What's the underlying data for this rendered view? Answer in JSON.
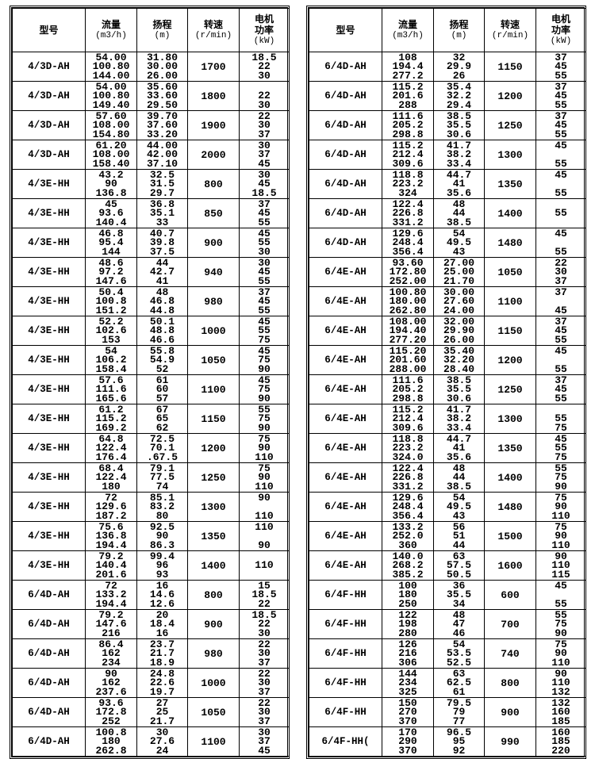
{
  "headers": {
    "model": "型号",
    "flow": "流量",
    "flow_unit": "(m3/h)",
    "head": "扬程",
    "head_unit": "(m)",
    "speed": "转速",
    "speed_unit": "(r/min)",
    "power": "电机\n功率",
    "power_unit": "(kW)"
  },
  "left_table": [
    {
      "model": "4/3D-AH",
      "flow": [
        "54.00",
        "100.80",
        "144.00"
      ],
      "head": [
        "31.80",
        "30.00",
        "26.00"
      ],
      "speed": "1700",
      "power": [
        "18.5",
        "22",
        "30"
      ]
    },
    {
      "model": "4/3D-AH",
      "flow": [
        "54.00",
        "100.80",
        "149.40"
      ],
      "head": [
        "35.60",
        "33.60",
        "29.50"
      ],
      "speed": "1800",
      "power": [
        "",
        "22",
        "30"
      ]
    },
    {
      "model": "4/3D-AH",
      "flow": [
        "57.60",
        "108.00",
        "154.80"
      ],
      "head": [
        "39.70",
        "37.60",
        "33.20"
      ],
      "speed": "1900",
      "power": [
        "22",
        "30",
        "37"
      ]
    },
    {
      "model": "4/3D-AH",
      "flow": [
        "61.20",
        "108.00",
        "158.40"
      ],
      "head": [
        "44.00",
        "42.00",
        "37.10"
      ],
      "speed": "2000",
      "power": [
        "30",
        "37",
        "45"
      ]
    },
    {
      "model": "4/3E-HH",
      "flow": [
        "43.2",
        "90",
        "136.8"
      ],
      "head": [
        "32.5",
        "31.5",
        "29.7"
      ],
      "speed": "800",
      "power": [
        "30",
        "45",
        "18.5"
      ]
    },
    {
      "model": "4/3E-HH",
      "flow": [
        "45",
        "93.6",
        "140.4"
      ],
      "head": [
        "36.8",
        "35.1",
        "33"
      ],
      "speed": "850",
      "power": [
        "37",
        "45",
        "55"
      ]
    },
    {
      "model": "4/3E-HH",
      "flow": [
        "46.8",
        "95.4",
        "144"
      ],
      "head": [
        "40.7",
        "39.8",
        "37.5"
      ],
      "speed": "900",
      "power": [
        "45",
        "55",
        "30"
      ]
    },
    {
      "model": "4/3E-HH",
      "flow": [
        "48.6",
        "97.2",
        "147.6"
      ],
      "head": [
        "44",
        "42.7",
        "41"
      ],
      "speed": "940",
      "power": [
        "30",
        "45",
        "55"
      ]
    },
    {
      "model": "4/3E-HH",
      "flow": [
        "50.4",
        "100.8",
        "151.2"
      ],
      "head": [
        "48",
        "46.8",
        "44.8"
      ],
      "speed": "980",
      "power": [
        "37",
        "45",
        "55"
      ]
    },
    {
      "model": "4/3E-HH",
      "flow": [
        "52.2",
        "102.6",
        "153"
      ],
      "head": [
        "50.1",
        "48.8",
        "46.6"
      ],
      "speed": "1000",
      "power": [
        "45",
        "55",
        "75"
      ]
    },
    {
      "model": "4/3E-HH",
      "flow": [
        "54",
        "106.2",
        "158.4"
      ],
      "head": [
        "55.8",
        "54.9",
        "52"
      ],
      "speed": "1050",
      "power": [
        "45",
        "75",
        "90"
      ]
    },
    {
      "model": "4/3E-HH",
      "flow": [
        "57.6",
        "111.6",
        "165.6"
      ],
      "head": [
        "61",
        "60",
        "57"
      ],
      "speed": "1100",
      "power": [
        "45",
        "75",
        "90"
      ]
    },
    {
      "model": "4/3E-HH",
      "flow": [
        "61.2",
        "115.2",
        "169.2"
      ],
      "head": [
        "67",
        "65",
        "62"
      ],
      "speed": "1150",
      "power": [
        "55",
        "75",
        "90"
      ]
    },
    {
      "model": "4/3E-HH",
      "flow": [
        "64.8",
        "122.4",
        "176.4"
      ],
      "head": [
        "72.5",
        "70.1",
        ".67.5"
      ],
      "speed": "1200",
      "power": [
        "75",
        "90",
        "110"
      ]
    },
    {
      "model": "4/3E-HH",
      "flow": [
        "68.4",
        "122.4",
        "180"
      ],
      "head": [
        "79.1",
        "77.5",
        "74"
      ],
      "speed": "1250",
      "power": [
        "75",
        "90",
        "110"
      ]
    },
    {
      "model": "4/3E-HH",
      "flow": [
        "72",
        "129.6",
        "187.2"
      ],
      "head": [
        "85.1",
        "83.2",
        "80"
      ],
      "speed": "1300",
      "power": [
        "90",
        "",
        "110"
      ]
    },
    {
      "model": "4/3E-HH",
      "flow": [
        "75.6",
        "136.8",
        "194.4"
      ],
      "head": [
        "92.5",
        "90",
        "86.3"
      ],
      "speed": "1350",
      "power": [
        "110",
        "",
        "90"
      ]
    },
    {
      "model": "4/3E-HH",
      "flow": [
        "79.2",
        "140.4",
        "201.6"
      ],
      "head": [
        "99.4",
        "96",
        "93"
      ],
      "speed": "1400",
      "power": [
        "",
        "110",
        ""
      ]
    },
    {
      "model": "6/4D-AH",
      "flow": [
        "72",
        "133.2",
        "194.4"
      ],
      "head": [
        "16",
        "14.6",
        "12.6"
      ],
      "speed": "800",
      "power": [
        "15",
        "18.5",
        "22"
      ]
    },
    {
      "model": "6/4D-AH",
      "flow": [
        "79.2",
        "147.6",
        "216"
      ],
      "head": [
        "20",
        "18.4",
        "16"
      ],
      "speed": "900",
      "power": [
        "18.5",
        "22",
        "30"
      ]
    },
    {
      "model": "6/4D-AH",
      "flow": [
        "86.4",
        "162",
        "234"
      ],
      "head": [
        "23.7",
        "21.7",
        "18.9"
      ],
      "speed": "980",
      "power": [
        "22",
        "30",
        "37"
      ]
    },
    {
      "model": "6/4D-AH",
      "flow": [
        "90",
        "162",
        "237.6"
      ],
      "head": [
        "24.8",
        "22.6",
        "19.7"
      ],
      "speed": "1000",
      "power": [
        "22",
        "30",
        "37"
      ]
    },
    {
      "model": "6/4D-AH",
      "flow": [
        "93.6",
        "172.8",
        "252"
      ],
      "head": [
        "27",
        "25",
        "21.7"
      ],
      "speed": "1050",
      "power": [
        "22",
        "30",
        "37"
      ]
    },
    {
      "model": "6/4D-AH",
      "flow": [
        "100.8",
        "180",
        "262.8"
      ],
      "head": [
        "30",
        "27.6",
        "24"
      ],
      "speed": "1100",
      "power": [
        "30",
        "37",
        "45"
      ]
    }
  ],
  "right_table": [
    {
      "model": "6/4D-AH",
      "flow": [
        "108",
        "194.4",
        "277.2"
      ],
      "head": [
        "32",
        "29.9",
        "26"
      ],
      "speed": "1150",
      "power": [
        "37",
        "45",
        "55"
      ]
    },
    {
      "model": "6/4D-AH",
      "flow": [
        "115.2",
        "201.6",
        "288"
      ],
      "head": [
        "35.4",
        "32.2",
        "29.4"
      ],
      "speed": "1200",
      "power": [
        "37",
        "45",
        "55"
      ]
    },
    {
      "model": "6/4D-AH",
      "flow": [
        "111.6",
        "205.2",
        "298.8"
      ],
      "head": [
        "38.5",
        "35.5",
        "30.6"
      ],
      "speed": "1250",
      "power": [
        "37",
        "45",
        "55"
      ]
    },
    {
      "model": "6/4D-AH",
      "flow": [
        "115.2",
        "212.4",
        "309.6"
      ],
      "head": [
        "41.7",
        "38.2",
        "33.4"
      ],
      "speed": "1300",
      "power": [
        "45",
        "",
        "55"
      ]
    },
    {
      "model": "6/4D-AH",
      "flow": [
        "118.8",
        "223.2",
        "324"
      ],
      "head": [
        "44.7",
        "41",
        "35.6"
      ],
      "speed": "1350",
      "power": [
        "45",
        "",
        "55"
      ]
    },
    {
      "model": "6/4D-AH",
      "flow": [
        "122.4",
        "226.8",
        "331.2"
      ],
      "head": [
        "48",
        "44",
        "38.5"
      ],
      "speed": "1400",
      "power": [
        "",
        "55",
        ""
      ]
    },
    {
      "model": "6/4D-AH",
      "flow": [
        "129.6",
        "248.4",
        "356.4"
      ],
      "head": [
        "54",
        "49.5",
        "43"
      ],
      "speed": "1480",
      "power": [
        "45",
        "",
        "55"
      ]
    },
    {
      "model": "6/4E-AH",
      "flow": [
        "93.60",
        "172.80",
        "252.00"
      ],
      "head": [
        "27.00",
        "25.00",
        "21.70"
      ],
      "speed": "1050",
      "power": [
        "22",
        "30",
        "37"
      ]
    },
    {
      "model": "6/4E-AH",
      "flow": [
        "100.80",
        "180.00",
        "262.80"
      ],
      "head": [
        "30.00",
        "27.60",
        "24.00"
      ],
      "speed": "1100",
      "power": [
        "37",
        "",
        "45"
      ]
    },
    {
      "model": "6/4E-AH",
      "flow": [
        "108.00",
        "194.40",
        "277.20"
      ],
      "head": [
        "32.00",
        "29.90",
        "26.00"
      ],
      "speed": "1150",
      "power": [
        "37",
        "45",
        "55"
      ]
    },
    {
      "model": "6/4E-AH",
      "flow": [
        "115.20",
        "201.60",
        "288.00"
      ],
      "head": [
        "35.40",
        "32.20",
        "28.40"
      ],
      "speed": "1200",
      "power": [
        "45",
        "",
        "55"
      ]
    },
    {
      "model": "6/4E-AH",
      "flow": [
        "111.6",
        "205.2",
        "298.8"
      ],
      "head": [
        "38.5",
        "35.5",
        "30.6"
      ],
      "speed": "1250",
      "power": [
        "37",
        "45",
        "55"
      ]
    },
    {
      "model": "6/4E-AH",
      "flow": [
        "115.2",
        "212.4",
        "309.6"
      ],
      "head": [
        "41.7",
        "38.2",
        "33.4"
      ],
      "speed": "1300",
      "power": [
        "",
        "55",
        "75"
      ]
    },
    {
      "model": "6/4E-AH",
      "flow": [
        "118.8",
        "223.2",
        "324.0"
      ],
      "head": [
        "44.7",
        "41",
        "35.6"
      ],
      "speed": "1350",
      "power": [
        "45",
        "55",
        "75"
      ]
    },
    {
      "model": "6/4E-AH",
      "flow": [
        "122.4",
        "226.8",
        "331.2"
      ],
      "head": [
        "48",
        "44",
        "38.5"
      ],
      "speed": "1400",
      "power": [
        "55",
        "75",
        "90"
      ]
    },
    {
      "model": "6/4E-AH",
      "flow": [
        "129.6",
        "248.4",
        "356.4"
      ],
      "head": [
        "54",
        "49.5",
        "43"
      ],
      "speed": "1480",
      "power": [
        "75",
        "90",
        "110"
      ]
    },
    {
      "model": "6/4E-AH",
      "flow": [
        "133.2",
        "252.0",
        "360"
      ],
      "head": [
        "56",
        "51",
        "44"
      ],
      "speed": "1500",
      "power": [
        "75",
        "90",
        "110"
      ]
    },
    {
      "model": "6/4E-AH",
      "flow": [
        "140.0",
        "268.2",
        "385.2"
      ],
      "head": [
        "63",
        "57.5",
        "50.5"
      ],
      "speed": "1600",
      "power": [
        "90",
        "110",
        "115"
      ]
    },
    {
      "model": "6/4F-HH",
      "flow": [
        "100",
        "180",
        "250"
      ],
      "head": [
        "36",
        "35.5",
        "34"
      ],
      "speed": "600",
      "power": [
        "45",
        "",
        "55"
      ]
    },
    {
      "model": "6/4F-HH",
      "flow": [
        "122",
        "198",
        "280"
      ],
      "head": [
        "48",
        "47",
        "46"
      ],
      "speed": "700",
      "power": [
        "55",
        "75",
        "90"
      ]
    },
    {
      "model": "6/4F-HH",
      "flow": [
        "126",
        "216",
        "306"
      ],
      "head": [
        "54",
        "53.5",
        "52.5"
      ],
      "speed": "740",
      "power": [
        "75",
        "90",
        "110"
      ]
    },
    {
      "model": "6/4F-HH",
      "flow": [
        "144",
        "234",
        "325"
      ],
      "head": [
        "63",
        "62.5",
        "61"
      ],
      "speed": "800",
      "power": [
        "90",
        "110",
        "132"
      ]
    },
    {
      "model": "6/4F-HH",
      "flow": [
        "150",
        "270",
        "370"
      ],
      "head": [
        "79.5",
        "79",
        "77"
      ],
      "speed": "900",
      "power": [
        "132",
        "160",
        "185"
      ]
    },
    {
      "model": "6/4F-HH(",
      "flow": [
        "170",
        "290",
        "370"
      ],
      "head": [
        "96.5",
        "95",
        "92"
      ],
      "speed": "990",
      "power": [
        "160",
        "185",
        "220"
      ]
    }
  ]
}
